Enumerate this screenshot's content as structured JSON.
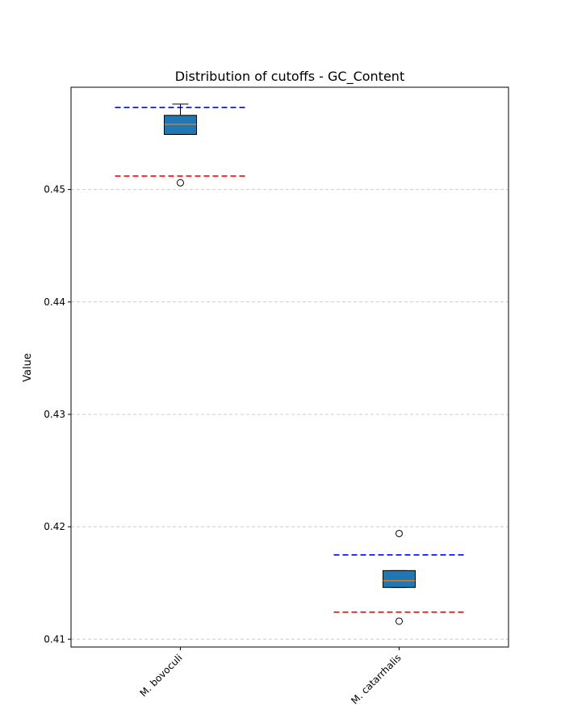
{
  "chart_data": {
    "type": "box",
    "title": "Distribution of cutoffs - GC_Content",
    "xlabel": "",
    "ylabel": "Value",
    "ylim": [
      0.4093,
      0.4591
    ],
    "yticks": [
      0.41,
      0.42,
      0.43,
      0.44,
      0.45
    ],
    "ytick_labels": [
      "0.41",
      "0.42",
      "0.43",
      "0.44",
      "0.45"
    ],
    "grid": "y-dashed",
    "categories": [
      "M. bovoculi",
      "M. catarrhalis"
    ],
    "boxes": [
      {
        "name": "M. bovoculi",
        "whisker_low": 0.4549,
        "q1": 0.4549,
        "median": 0.4558,
        "q3": 0.4566,
        "whisker_high": 0.4576,
        "outliers": [
          0.4506
        ],
        "upper_cutoff": 0.4573,
        "lower_cutoff": 0.4512
      },
      {
        "name": "M. catarrhalis",
        "whisker_low": 0.4146,
        "q1": 0.4146,
        "median": 0.4152,
        "q3": 0.4161,
        "whisker_high": 0.4161,
        "outliers": [
          0.4194,
          0.4116
        ],
        "upper_cutoff": 0.4175,
        "lower_cutoff": 0.4124
      }
    ],
    "colors": {
      "box_fill": "#1f77b4",
      "median": "#ff7f0e",
      "upper_cutoff": "#0000ff",
      "lower_cutoff": "#ff0000",
      "grid": "#cccccc"
    }
  }
}
